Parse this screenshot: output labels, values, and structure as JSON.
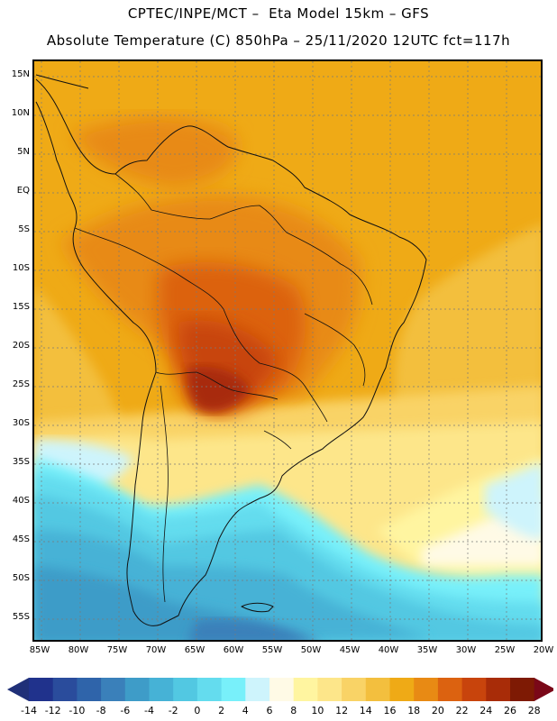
{
  "header": {
    "line1": "CPTEC/INPE/MCT –  Eta Model 15km – GFS",
    "line2": "Absolute Temperature (C) 850hPa – 25/11/2020 12UTC fct=117h"
  },
  "map": {
    "lat_labels": [
      "15N",
      "10N",
      "5N",
      "EQ",
      "5S",
      "10S",
      "15S",
      "20S",
      "25S",
      "30S",
      "35S",
      "40S",
      "45S",
      "50S",
      "55S"
    ],
    "lon_labels": [
      "85W",
      "80W",
      "75W",
      "70W",
      "65W",
      "60W",
      "55W",
      "50W",
      "45W",
      "40W",
      "35W",
      "30W",
      "25W",
      "20W"
    ]
  },
  "legend": {
    "colors": [
      "#20328c",
      "#2a4c9c",
      "#2f64aa",
      "#3a80ba",
      "#3e9cc8",
      "#46b2d6",
      "#52c8e2",
      "#64dcee",
      "#78f0fa",
      "#cef4fc",
      "#fffae6",
      "#fff5a0",
      "#fde68a",
      "#f9d366",
      "#f3bf3e",
      "#efaa16",
      "#e88a14",
      "#dc6210",
      "#c8440c",
      "#a82c08",
      "#7e1a04"
    ],
    "low_arrow_color": "#203078",
    "high_arrow_color": "#7a0818",
    "labels": [
      "-14",
      "-12",
      "-10",
      "-8",
      "-6",
      "-4",
      "-2",
      "0",
      "2",
      "4",
      "6",
      "8",
      "10",
      "12",
      "14",
      "16",
      "18",
      "20",
      "22",
      "24",
      "26",
      "28"
    ]
  }
}
